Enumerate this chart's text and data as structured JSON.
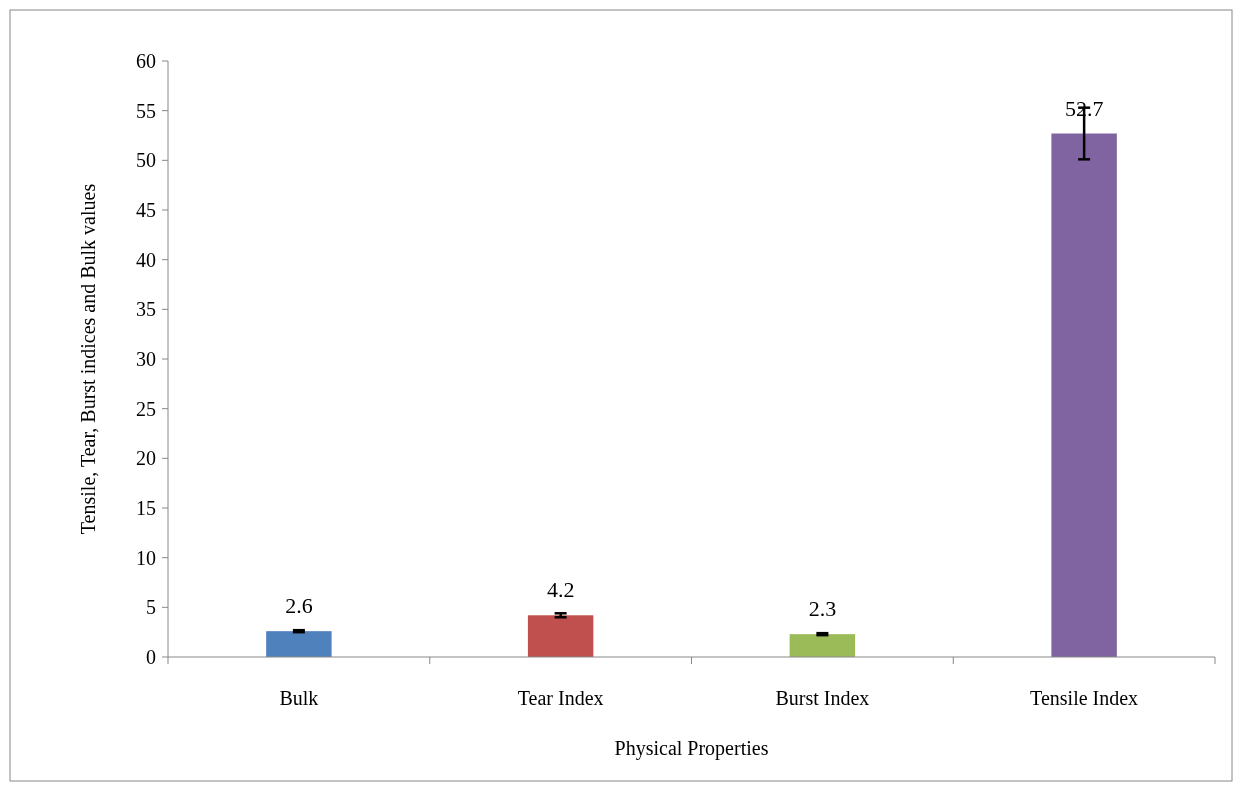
{
  "chart_data": {
    "type": "bar",
    "xlabel": "Physical Properties",
    "ylabel": "Tensile, Tear, Burst indices and Bulk values",
    "categories": [
      "Bulk",
      "Tear Index",
      "Burst Index",
      "Tensile Index"
    ],
    "values": [
      2.6,
      4.2,
      2.3,
      52.7
    ],
    "colors": [
      "#4f81bd",
      "#c0504d",
      "#9bbb59",
      "#8064a2"
    ],
    "errors": [
      0.1,
      0.2,
      0.1,
      2.6
    ],
    "data_labels": true,
    "ylim": [
      0,
      60
    ],
    "yticks": [
      0,
      5,
      10,
      15,
      20,
      25,
      30,
      35,
      40,
      45,
      50,
      55,
      60
    ],
    "grid": false
  }
}
